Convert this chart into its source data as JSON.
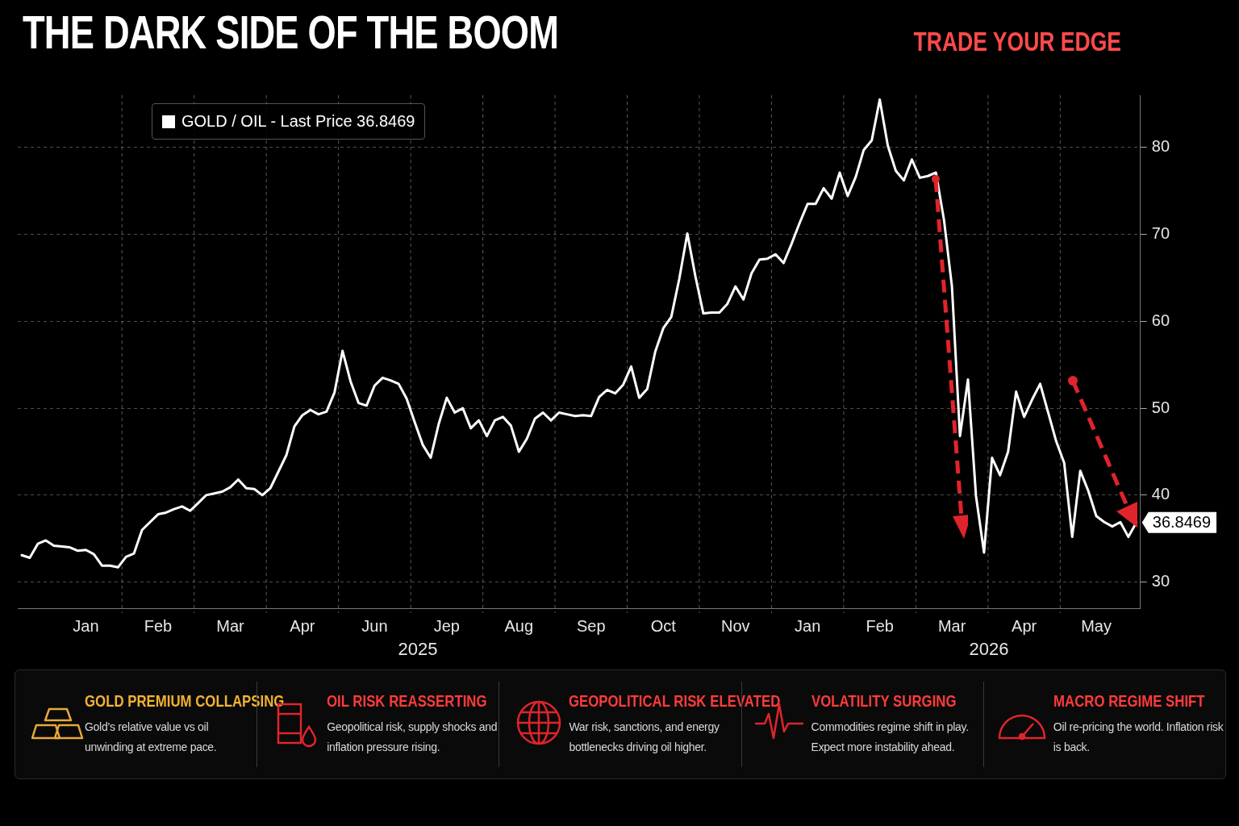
{
  "chart_data": {
    "type": "line",
    "title": "THE DARK SIDE OF THE BOOM",
    "categories": [
      null,
      null,
      null,
      null,
      null,
      null,
      null,
      null,
      "Jan",
      null,
      null,
      null,
      null,
      null,
      null,
      null,
      null,
      "Feb",
      null,
      null,
      null,
      null,
      null,
      null,
      null,
      null,
      "Mar",
      null,
      null,
      null,
      null,
      null,
      null,
      null,
      null,
      "Apr",
      null,
      null,
      null,
      null,
      null,
      null,
      null,
      null,
      "Jun",
      null,
      null,
      null,
      null,
      null,
      null,
      null,
      null,
      "Jep",
      null,
      null,
      null,
      null,
      null,
      null,
      null,
      null,
      "Aug",
      null,
      null,
      null,
      null,
      null,
      null,
      null,
      null,
      "Sep",
      null,
      null,
      null,
      null,
      null,
      null,
      null,
      null,
      "Oct",
      null,
      null,
      null,
      null,
      null,
      null,
      null,
      null,
      "Nov",
      null,
      null,
      null,
      null,
      null,
      null,
      null,
      null,
      "Jan",
      null,
      null,
      null,
      null,
      null,
      null,
      null,
      null,
      "Feb",
      null,
      null,
      null,
      null,
      null,
      null,
      null,
      null,
      "Mar",
      null,
      null,
      null,
      null,
      null,
      null,
      null,
      null,
      "Apr",
      null,
      null,
      null,
      null,
      null,
      null,
      null,
      null,
      "May",
      null,
      null,
      null,
      null,
      null
    ],
    "series": [
      {
        "name": "GOLD / OIL - Last Price 36.8469",
        "color": "#ffffff",
        "values": [
          33.1,
          32.8,
          34.4,
          34.8,
          34.2,
          34.1,
          34.0,
          33.6,
          33.7,
          33.2,
          31.9,
          31.9,
          31.7,
          32.9,
          33.3,
          36.0,
          36.9,
          37.8,
          38.0,
          38.4,
          38.7,
          38.2,
          39.1,
          40.0,
          40.2,
          40.4,
          40.9,
          41.8,
          40.8,
          40.7,
          40.0,
          40.8,
          42.7,
          44.6,
          47.9,
          49.2,
          49.8,
          49.3,
          49.6,
          51.8,
          56.6,
          53.1,
          50.6,
          50.3,
          52.6,
          53.5,
          53.2,
          52.8,
          51.1,
          48.4,
          45.8,
          44.3,
          48.2,
          51.2,
          49.5,
          50.0,
          47.7,
          48.6,
          46.8,
          48.6,
          49.0,
          48.0,
          45.0,
          46.5,
          48.8,
          49.5,
          48.6,
          49.5,
          49.3,
          49.1,
          49.2,
          49.1,
          51.3,
          52.1,
          51.7,
          52.7,
          54.8,
          51.2,
          52.2,
          56.5,
          59.2,
          60.5,
          64.9,
          70.1,
          65.2,
          60.9,
          61.0,
          61.0,
          62.0,
          64.0,
          62.5,
          65.5,
          67.1,
          67.2,
          67.7,
          66.7,
          68.9,
          71.3,
          73.5,
          73.5,
          75.3,
          74.1,
          77.1,
          74.4,
          76.6,
          79.7,
          80.8,
          85.5,
          80.2,
          77.3,
          76.2,
          78.6,
          76.5,
          76.7,
          77.1,
          71.7,
          64.0,
          46.8,
          53.3,
          39.9,
          33.4,
          44.3,
          42.3,
          45.0,
          51.9,
          49.0,
          51.0,
          52.8,
          49.5,
          46.2,
          43.7,
          35.2,
          42.8,
          40.5,
          37.6,
          36.9,
          36.4,
          36.9,
          35.2,
          36.8469
        ]
      }
    ],
    "ylim": [
      27,
      86
    ],
    "yticks": [
      30,
      40,
      50,
      60,
      70,
      80
    ],
    "grid": true,
    "legend": "top left",
    "annotations": [
      "2025",
      "2026",
      "GOLD PREMIUM COLLAPSING",
      "Gold’s relative value vs oil unwinding at extreme pace.",
      "OIL RISK REASSERTING",
      "Geopolitical risk, supply shocks and inflation pressure rising.",
      "GEOPOLITICAL RISK ELEVATED",
      "War risk, sanctions, and energy bottlenecks driving oil higher.",
      "VOLATILITY SURGING",
      "Commodities regime shift in play. Expect more instability ahead.",
      "MACRO REGIME SHIFT",
      "Oil re-pricing the world. Inflation risk is back.",
      "TRADE YOUR EDGE",
      "36.8469"
    ]
  }
}
